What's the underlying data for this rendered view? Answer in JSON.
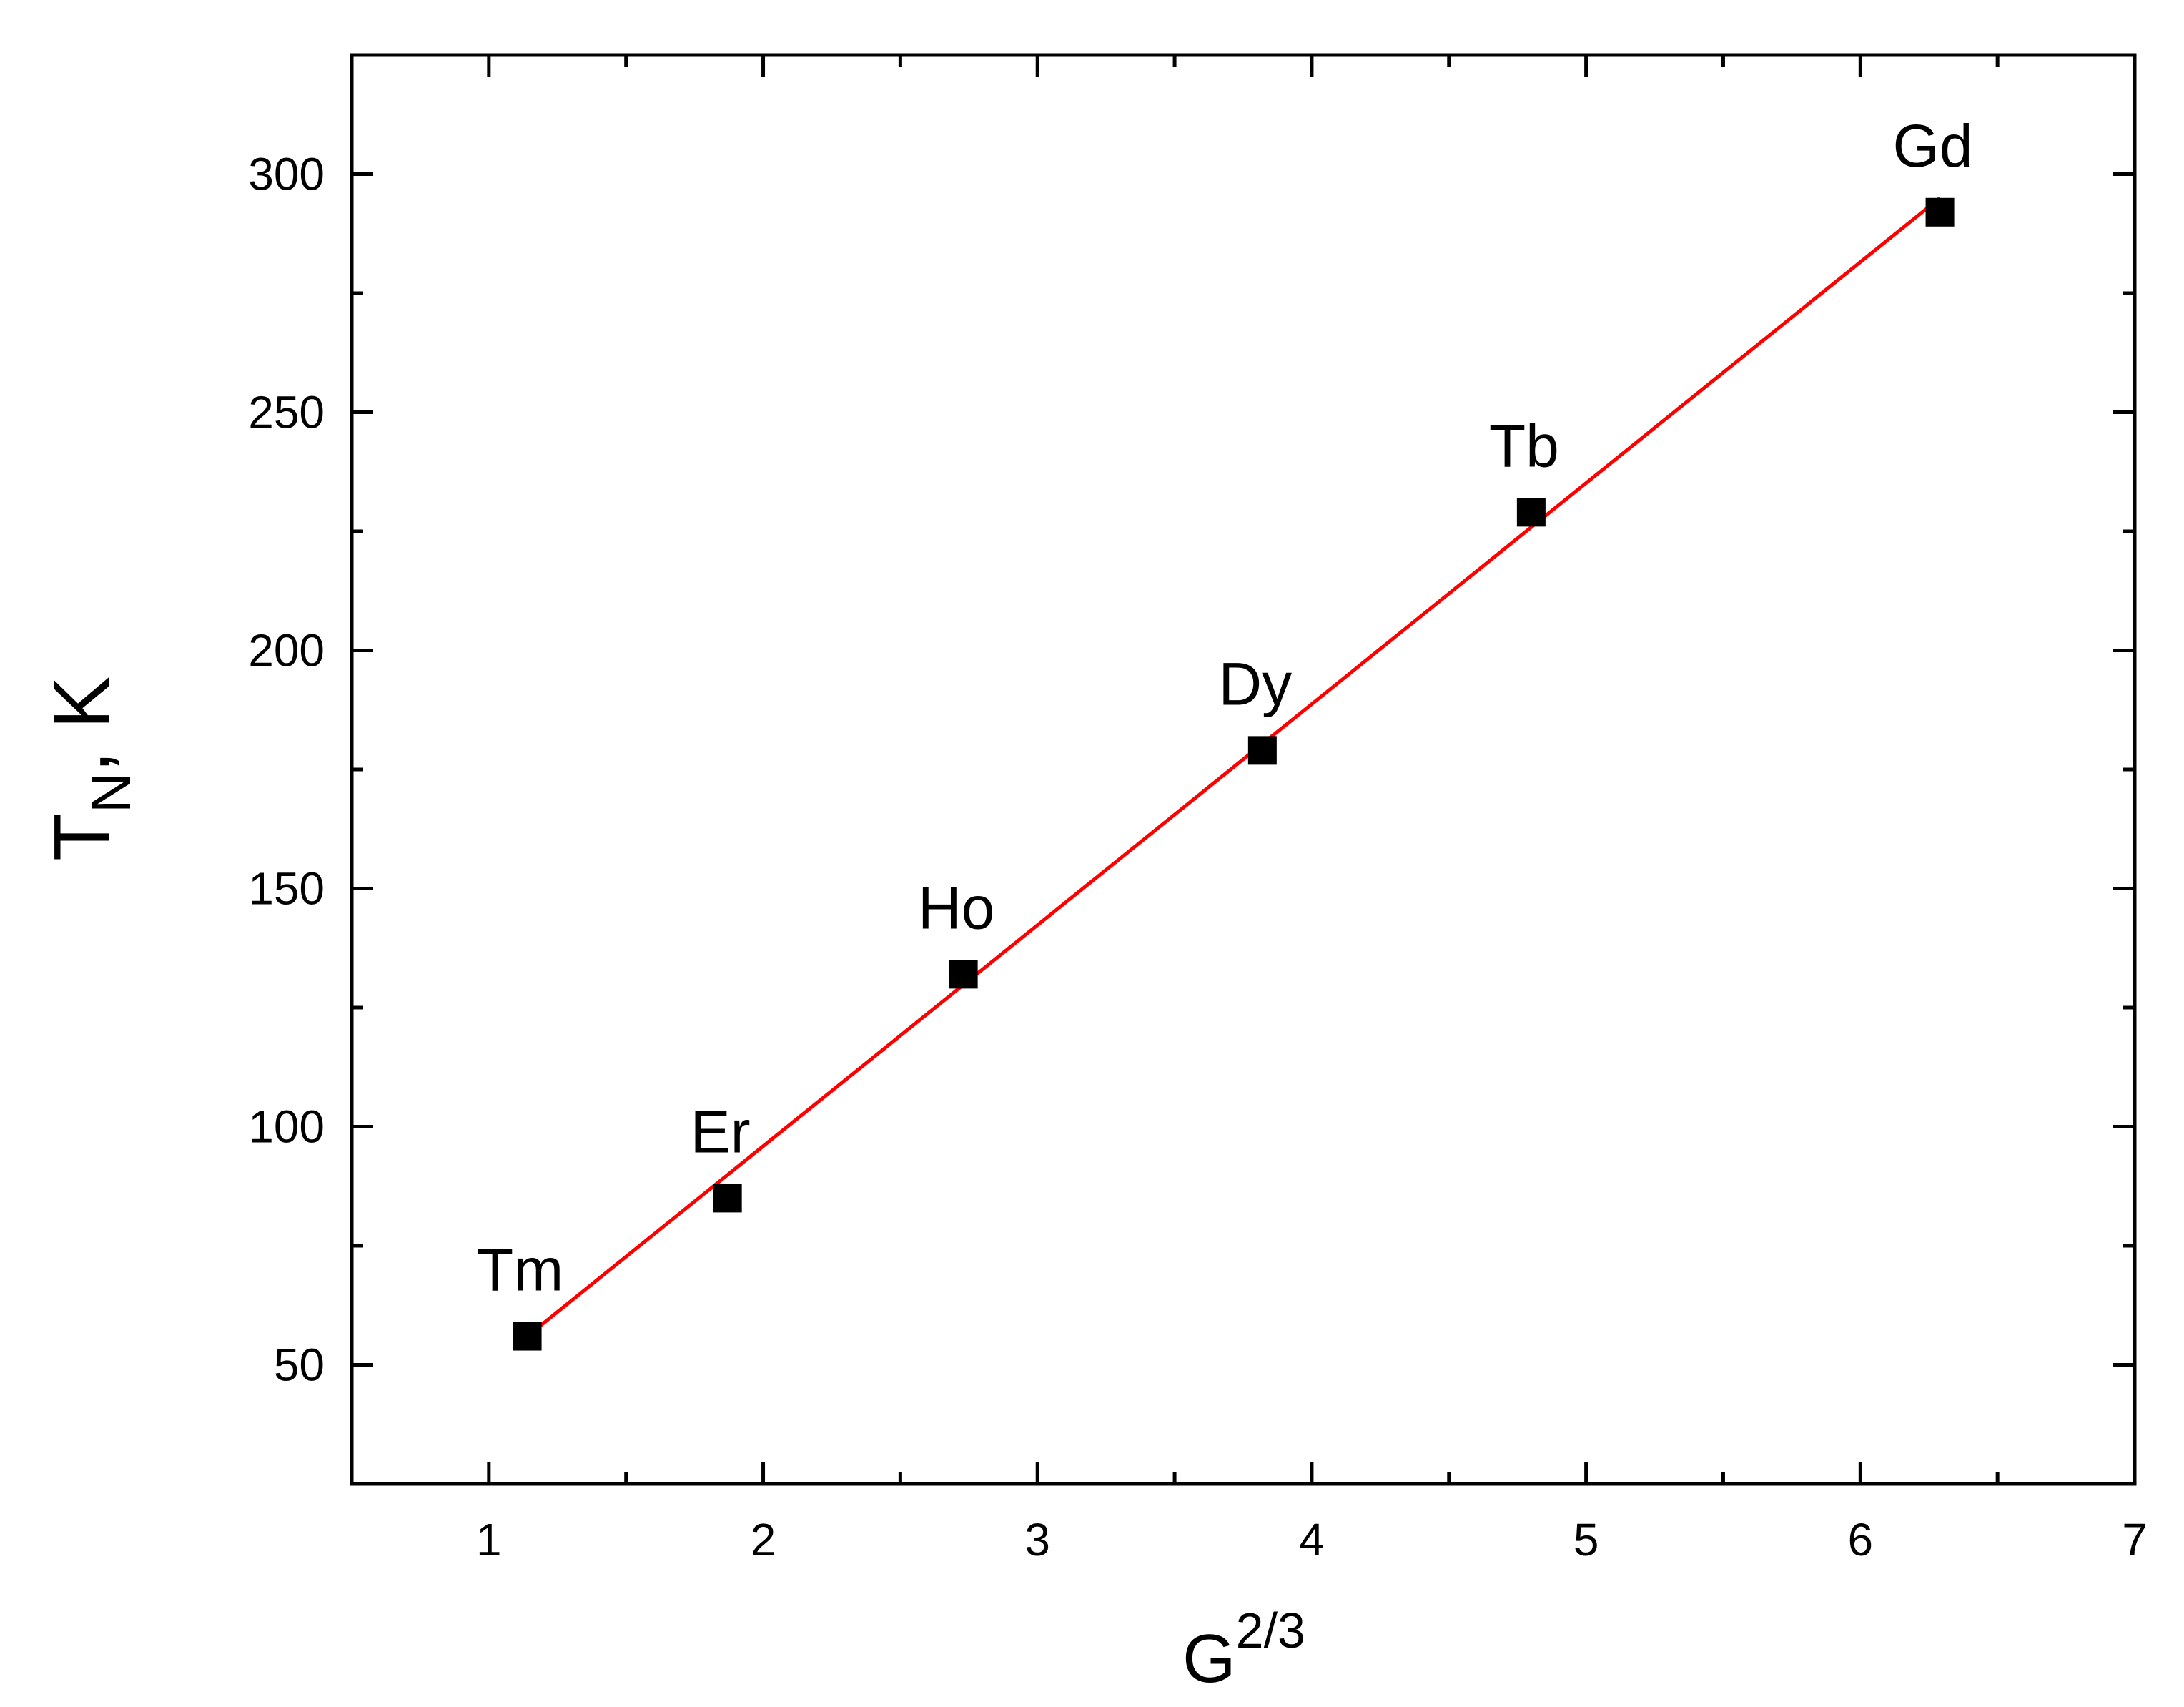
{
  "chart_data": {
    "type": "scatter",
    "xlabel_base": "G",
    "xlabel_sup": "2/3",
    "ylabel_main": "T",
    "ylabel_sub": "N",
    "ylabel_rest": ", K",
    "xlim": [
      0.5,
      7
    ],
    "ylim": [
      25,
      325
    ],
    "x_ticks": [
      1,
      2,
      3,
      4,
      5,
      6,
      7
    ],
    "x_minor_ticks": [
      1.5,
      2.5,
      3.5,
      4.5,
      5.5,
      6.5
    ],
    "y_ticks": [
      50,
      100,
      150,
      200,
      250,
      300
    ],
    "y_minor_ticks": [
      75,
      125,
      175,
      225,
      275
    ],
    "grid": false,
    "legend": "none",
    "marker_color": "#000000",
    "fit_color": "#ff0000",
    "series": [
      {
        "marker": "square",
        "points": [
          {
            "label": "Tm",
            "x": 1.14,
            "y": 56
          },
          {
            "label": "Er",
            "x": 1.87,
            "y": 85
          },
          {
            "label": "Ho",
            "x": 2.73,
            "y": 132
          },
          {
            "label": "Dy",
            "x": 3.82,
            "y": 179
          },
          {
            "label": "Tb",
            "x": 4.8,
            "y": 229
          },
          {
            "label": "Gd",
            "x": 6.29,
            "y": 292
          }
        ]
      }
    ],
    "fit_line": {
      "x": [
        1.14,
        6.29
      ],
      "y": [
        56,
        295
      ]
    }
  }
}
